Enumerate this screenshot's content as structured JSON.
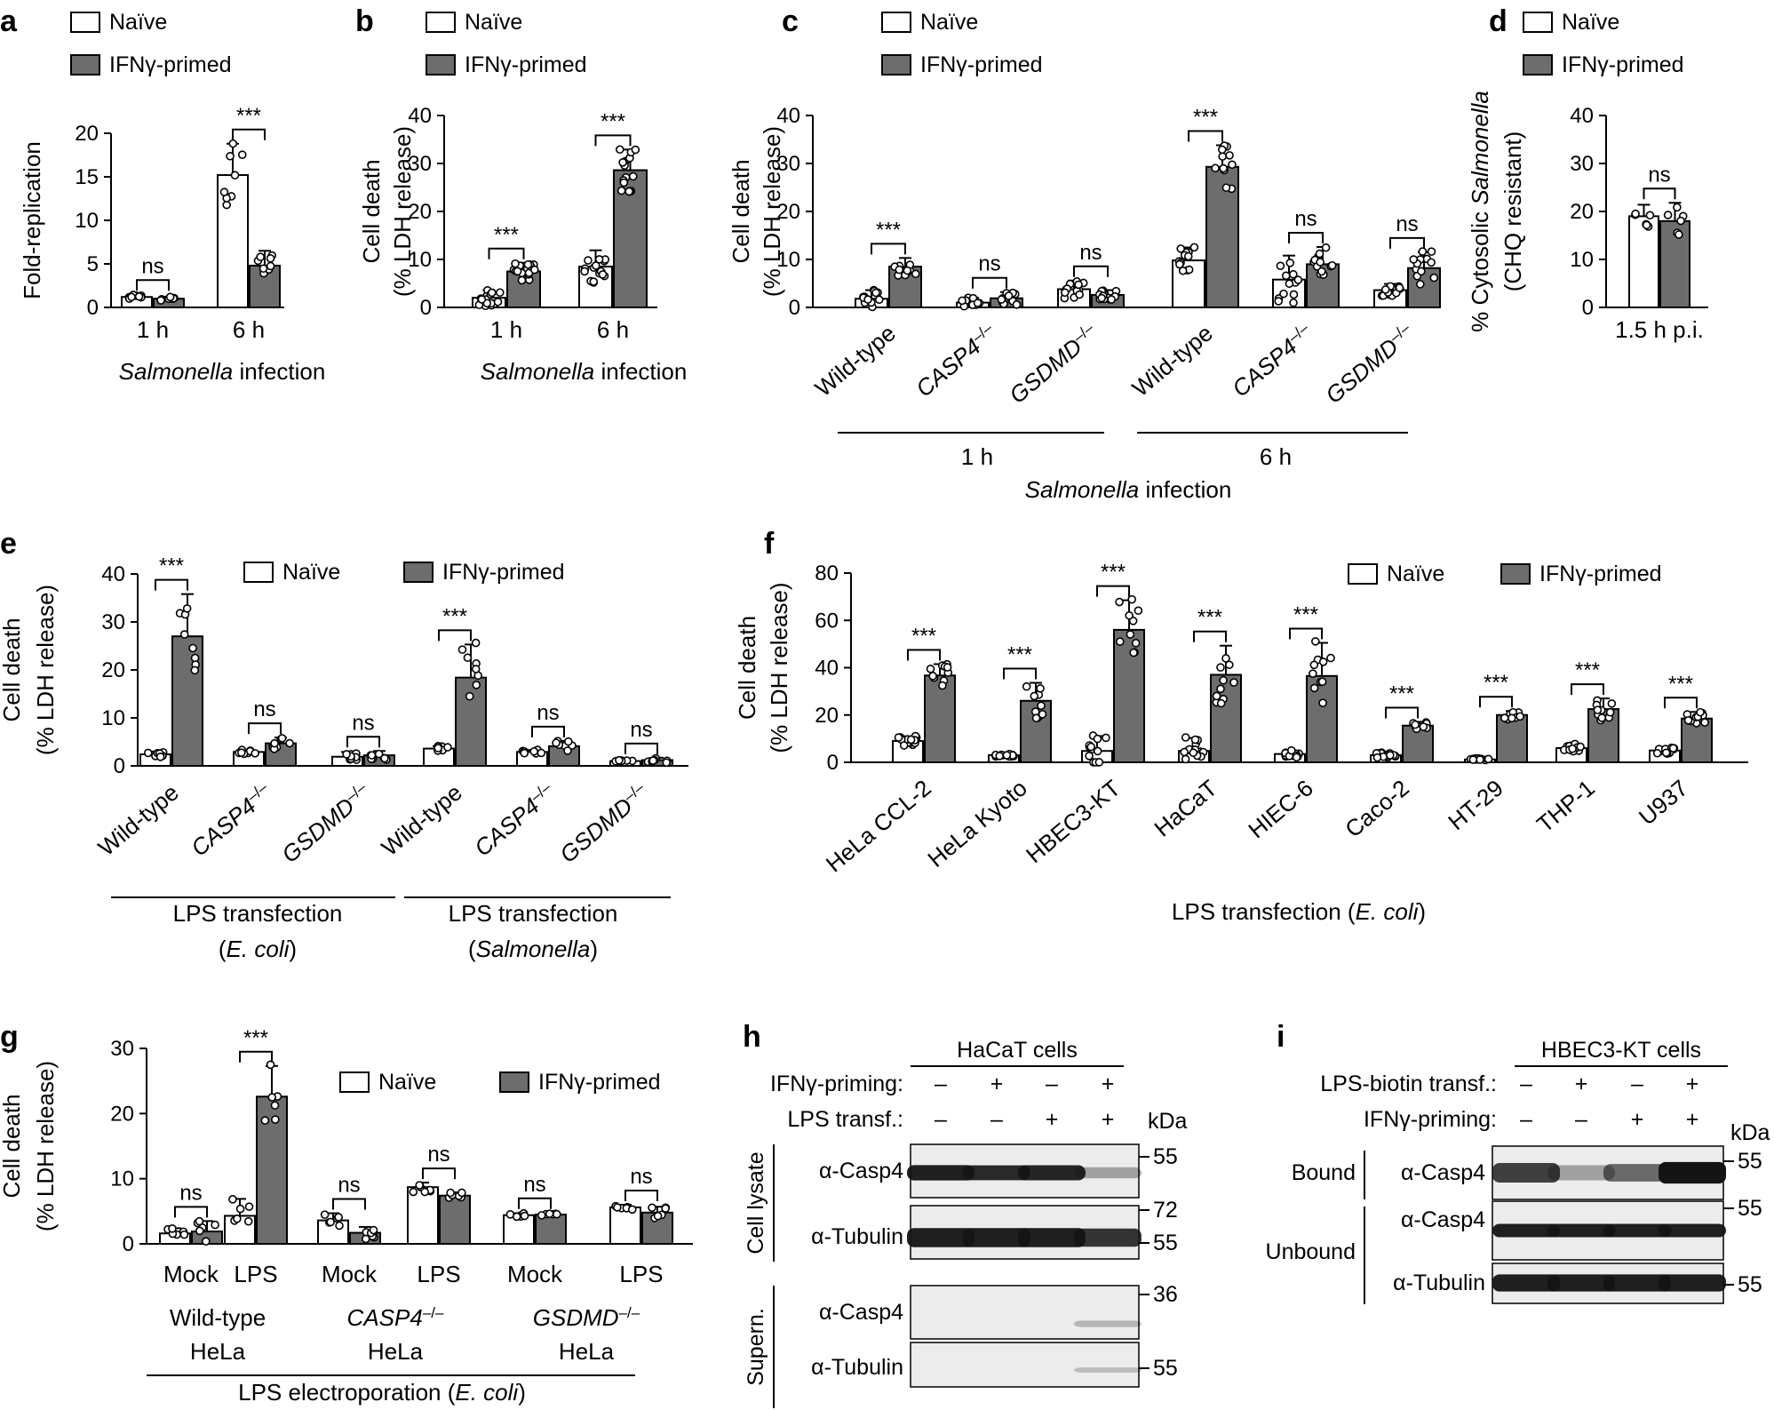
{
  "colors": {
    "naive": "#ffffff",
    "primed": "#6d6d6d",
    "ink": "#000000",
    "membrane": "#ececec",
    "band": "#141414"
  },
  "legend": {
    "naive": "Naïve",
    "primed": "IFNγ-primed"
  },
  "chart_data": [
    {
      "id": "a",
      "panel_label": "a",
      "type": "bar",
      "ylabel": "Fold-replication",
      "ylim": [
        0,
        20
      ],
      "yticks": [
        "0",
        "5",
        "10",
        "15",
        "20"
      ],
      "categories": [
        "1 h",
        "6 h"
      ],
      "series": [
        {
          "name": "Naïve",
          "values": [
            1.2,
            15.2
          ],
          "errors": [
            0.3,
            3.6
          ]
        },
        {
          "name": "IFNγ-primed",
          "values": [
            1.0,
            4.8
          ],
          "errors": [
            0.2,
            1.7
          ]
        }
      ],
      "significance": [
        "ns",
        "***"
      ],
      "group_labels": [
        {
          "segments": [
            {
              "text": "Salmonella",
              "italic": true
            },
            {
              "text": " infection"
            }
          ]
        }
      ]
    },
    {
      "id": "b",
      "panel_label": "b",
      "type": "bar",
      "ylabel": "Cell death",
      "ylabel2": "(% LDH release)",
      "ylim": [
        0,
        40
      ],
      "yticks": [
        "0",
        "10",
        "20",
        "30",
        "40"
      ],
      "categories": [
        "1 h",
        "6 h"
      ],
      "series": [
        {
          "name": "Naïve",
          "values": [
            2.0,
            8.5
          ],
          "errors": [
            1.6,
            3.4
          ]
        },
        {
          "name": "IFNγ-primed",
          "values": [
            7.5,
            28.6
          ],
          "errors": [
            1.8,
            4.3
          ]
        }
      ],
      "significance": [
        "***",
        "***"
      ],
      "group_labels": [
        {
          "segments": [
            {
              "text": "Salmonella",
              "italic": true
            },
            {
              "text": " infection"
            }
          ]
        }
      ]
    },
    {
      "id": "c",
      "panel_label": "c",
      "type": "bar",
      "ylabel": "Cell death",
      "ylabel2": "(% LDH release)",
      "ylim": [
        0,
        40
      ],
      "yticks": [
        "0",
        "10",
        "20",
        "30",
        "40"
      ],
      "categories": [
        "Wild-type",
        "CASP4–/–",
        "GSDMD–/–",
        "Wild-type",
        "CASP4–/–",
        "GSDMD–/–"
      ],
      "series": [
        {
          "name": "Naïve",
          "values": [
            1.8,
            1.0,
            3.8,
            9.8,
            5.8,
            3.6
          ],
          "errors": [
            1.8,
            1.0,
            1.8,
            2.7,
            5.0,
            1.3
          ]
        },
        {
          "name": "IFNγ-primed",
          "values": [
            8.5,
            1.9,
            2.6,
            29.3,
            9.0,
            8.2
          ],
          "errors": [
            1.8,
            1.3,
            1.0,
            4.5,
            3.6,
            3.3
          ]
        }
      ],
      "significance": [
        "***",
        "ns",
        "ns",
        "***",
        "ns",
        "ns"
      ],
      "group_labels": [
        {
          "segments": [
            {
              "text": "1 h"
            }
          ]
        },
        {
          "segments": [
            {
              "text": "6 h"
            }
          ]
        },
        {
          "segments": [
            {
              "text": "Salmonella",
              "italic": true
            },
            {
              "text": " infection"
            }
          ]
        }
      ]
    },
    {
      "id": "d",
      "panel_label": "d",
      "type": "bar",
      "ylabel": "% Cytosolic Salmonella",
      "ylabel2": "(CHQ resistant)",
      "ylim": [
        0,
        40
      ],
      "yticks": [
        "0",
        "10",
        "20",
        "30",
        "40"
      ],
      "categories": [
        "1.5 h p.i."
      ],
      "series": [
        {
          "name": "Naïve",
          "values": [
            19.0
          ],
          "errors": [
            2.4
          ]
        },
        {
          "name": "IFNγ-primed",
          "values": [
            18.0
          ],
          "errors": [
            3.8
          ]
        }
      ],
      "significance": [
        "ns"
      ],
      "group_labels": []
    },
    {
      "id": "e",
      "panel_label": "e",
      "type": "bar",
      "ylabel": "Cell death",
      "ylabel2": "(% LDH release)",
      "ylim": [
        0,
        40
      ],
      "yticks": [
        "0",
        "10",
        "20",
        "30",
        "40"
      ],
      "categories": [
        "Wild-type",
        "CASP4–/–",
        "GSDMD–/–",
        "Wild-type",
        "CASP4–/–",
        "GSDMD–/–"
      ],
      "series": [
        {
          "name": "Naïve",
          "values": [
            2.4,
            2.9,
            1.9,
            3.6,
            2.9,
            1.0
          ],
          "errors": [
            0.6,
            0.4,
            1.0,
            0.5,
            0.4,
            0.2
          ]
        },
        {
          "name": "IFNγ-primed",
          "values": [
            27.0,
            4.7,
            2.2,
            18.4,
            4.1,
            1.2
          ],
          "errors": [
            8.8,
            1.2,
            0.9,
            6.9,
            1.1,
            0.5
          ]
        }
      ],
      "significance": [
        "***",
        "ns",
        "ns",
        "***",
        "ns",
        "ns"
      ],
      "group_labels": [
        {
          "segments": [
            {
              "text": "LPS transfection"
            }
          ]
        },
        {
          "segments": [
            {
              "text": "("
            },
            {
              "text": "E. coli",
              "italic": true
            },
            {
              "text": ")"
            }
          ]
        },
        {
          "segments": [
            {
              "text": "LPS transfection"
            }
          ]
        },
        {
          "segments": [
            {
              "text": "("
            },
            {
              "text": "Salmonella",
              "italic": true
            },
            {
              "text": ")"
            }
          ]
        }
      ]
    },
    {
      "id": "f",
      "panel_label": "f",
      "type": "bar",
      "ylabel": "Cell death",
      "ylabel2": "(% LDH release)",
      "ylim": [
        0,
        80
      ],
      "yticks": [
        "0",
        "20",
        "40",
        "60",
        "80"
      ],
      "categories": [
        "HeLa CCL-2",
        "HeLa Kyoto",
        "HBEC3-KT",
        "HaCaT",
        "HIEC-6",
        "Caco-2",
        "HT-29",
        "THP-1",
        "U937"
      ],
      "series": [
        {
          "name": "Naïve",
          "values": [
            9.0,
            3.0,
            4.8,
            4.8,
            3.5,
            3.0,
            1.2,
            6.0,
            5.0
          ],
          "errors": [
            2.0,
            0.5,
            6.3,
            5.5,
            1.5,
            1.1,
            0.5,
            1.8,
            1.4
          ]
        },
        {
          "name": "IFNγ-primed",
          "values": [
            36.7,
            26.0,
            56.0,
            37.0,
            36.5,
            15.5,
            20.0,
            22.5,
            18.5
          ],
          "errors": [
            4.8,
            7.6,
            12.5,
            12.3,
            14.0,
            1.6,
            1.7,
            4.5,
            2.8
          ]
        }
      ],
      "significance": [
        "***",
        "***",
        "***",
        "***",
        "***",
        "***",
        "***",
        "***",
        "***"
      ],
      "group_labels": [
        {
          "segments": [
            {
              "text": "LPS transfection ("
            },
            {
              "text": "E. coli",
              "italic": true
            },
            {
              "text": ")"
            }
          ]
        }
      ]
    },
    {
      "id": "g",
      "panel_label": "g",
      "type": "bar",
      "ylabel": "Cell death",
      "ylabel2": "(% LDH release)",
      "ylim": [
        0,
        30
      ],
      "yticks": [
        "0",
        "10",
        "20",
        "30"
      ],
      "categories": [
        "Mock",
        "LPS",
        "Mock",
        "LPS",
        "Mock",
        "LPS"
      ],
      "series": [
        {
          "name": "Naïve",
          "values": [
            1.6,
            4.3,
            3.6,
            8.7,
            4.4,
            5.6
          ],
          "errors": [
            0.8,
            2.6,
            1.1,
            0.7,
            0.3,
            0.4
          ]
        },
        {
          "name": "IFNγ-primed",
          "values": [
            1.9,
            22.6,
            1.7,
            7.4,
            4.5,
            4.8
          ],
          "errors": [
            1.6,
            4.7,
            0.9,
            0.5,
            0.3,
            0.9
          ]
        }
      ],
      "significance": [
        "ns",
        "***",
        "ns",
        "ns",
        "ns",
        "ns"
      ],
      "group_labels": [
        {
          "segments": [
            {
              "text": "Wild-type"
            }
          ]
        },
        {
          "segments": [
            {
              "text": "HeLa"
            }
          ]
        },
        {
          "segments": [
            {
              "text": "CASP4",
              "italic": true
            },
            {
              "text": "–/–",
              "sup": true
            }
          ]
        },
        {
          "segments": [
            {
              "text": "HeLa"
            }
          ]
        },
        {
          "segments": [
            {
              "text": "GSDMD",
              "italic": true
            },
            {
              "text": "–/–",
              "sup": true
            }
          ]
        },
        {
          "segments": [
            {
              "text": "HeLa"
            }
          ]
        },
        {
          "segments": [
            {
              "text": "LPS electroporation ("
            },
            {
              "text": "E. coli",
              "italic": true
            },
            {
              "text": ")"
            }
          ]
        }
      ]
    }
  ],
  "blot_h": {
    "panel_label": "h",
    "title": "HaCaT cells",
    "rows": [
      {
        "label": "IFNγ-priming:",
        "marks": [
          "–",
          "+",
          "–",
          "+"
        ]
      },
      {
        "label": "LPS transf.:",
        "marks": [
          "–",
          "–",
          "+",
          "+"
        ]
      }
    ],
    "unit": "kDa",
    "sections": [
      "Cell lysate",
      "Supern."
    ],
    "strips": [
      {
        "label": "α-Casp4",
        "intensity": [
          0.95,
          0.9,
          0.92,
          0.35
        ],
        "markers": [
          "55"
        ]
      },
      {
        "label": "α-Tubulin",
        "intensity": [
          0.95,
          0.95,
          0.95,
          0.85
        ],
        "markers": [
          "72",
          "55"
        ]
      },
      {
        "label": "α-Casp4",
        "intensity": [
          0,
          0,
          0,
          0.25
        ],
        "markers": [
          "36"
        ]
      },
      {
        "label": "α-Tubulin",
        "intensity": [
          0,
          0,
          0,
          0.22
        ],
        "markers": [
          "55"
        ]
      }
    ]
  },
  "blot_i": {
    "panel_label": "i",
    "title": "HBEC3-KT cells",
    "rows": [
      {
        "label": "LPS-biotin transf.:",
        "marks": [
          "–",
          "+",
          "–",
          "+"
        ]
      },
      {
        "label": "IFNγ-priming:",
        "marks": [
          "–",
          "–",
          "+",
          "+"
        ]
      }
    ],
    "unit": "kDa",
    "sections": [
      "Bound",
      "Unbound"
    ],
    "strips": [
      {
        "label": "α-Casp4",
        "intensity": [
          0.8,
          0.35,
          0.6,
          1.0
        ],
        "markers": [
          "55"
        ]
      },
      {
        "label": "α-Casp4",
        "intensity": [
          0.95,
          0.95,
          0.95,
          0.95
        ],
        "markers": [
          "55"
        ]
      },
      {
        "label": "α-Tubulin",
        "intensity": [
          0.95,
          0.95,
          0.95,
          0.95
        ],
        "markers": [
          "55"
        ]
      }
    ]
  }
}
